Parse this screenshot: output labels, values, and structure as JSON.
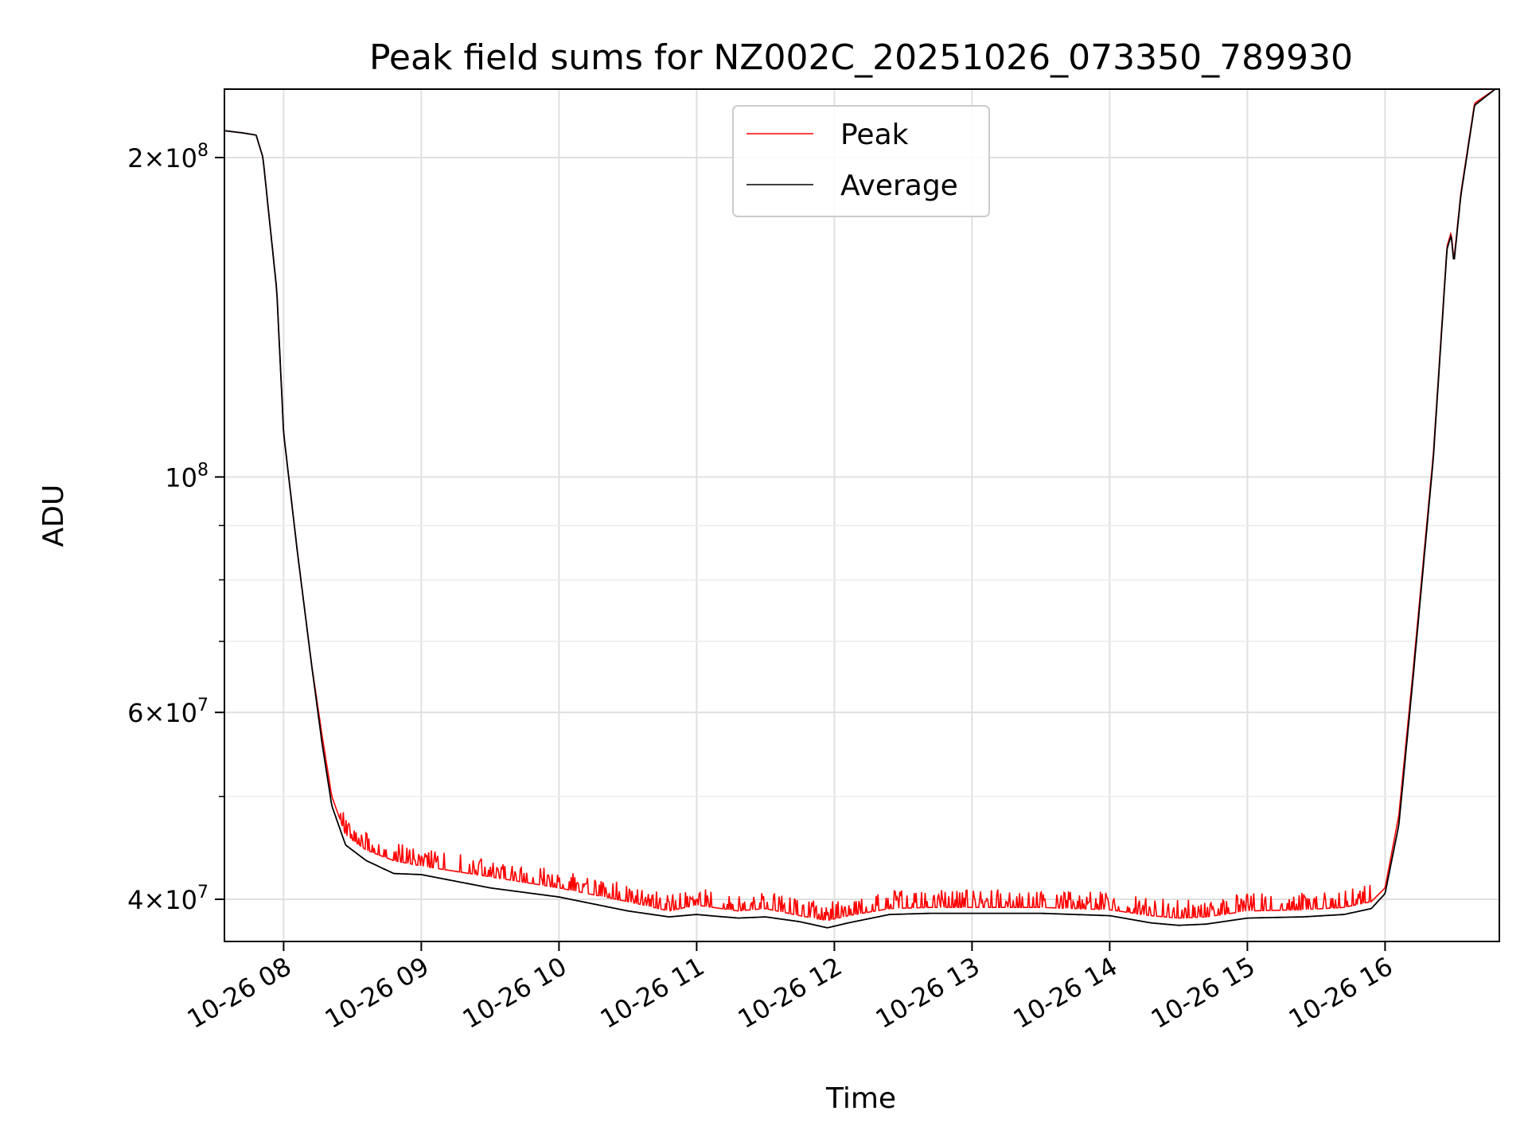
{
  "chart_data": {
    "type": "line",
    "title": "Peak field sums for NZ002C_20251026_073350_789930",
    "xlabel": "Time",
    "ylabel": "ADU",
    "yscale": "log",
    "xlim_hours": [
      7.57,
      16.83
    ],
    "ylim": [
      36500000,
      232000000
    ],
    "grid": true,
    "legend_position": "upper center",
    "x_ticks": [
      {
        "hour": 8,
        "label": "10-26 08"
      },
      {
        "hour": 9,
        "label": "10-26 09"
      },
      {
        "hour": 10,
        "label": "10-26 10"
      },
      {
        "hour": 11,
        "label": "10-26 11"
      },
      {
        "hour": 12,
        "label": "10-26 12"
      },
      {
        "hour": 13,
        "label": "10-26 13"
      },
      {
        "hour": 14,
        "label": "10-26 14"
      },
      {
        "hour": 15,
        "label": "10-26 15"
      },
      {
        "hour": 16,
        "label": "10-26 16"
      }
    ],
    "y_major_ticks": [
      {
        "value": 40000000,
        "mant": "4",
        "exp": "7"
      },
      {
        "value": 60000000,
        "mant": "6",
        "exp": "7"
      },
      {
        "value": 100000000,
        "mant": "",
        "exp": "8"
      },
      {
        "value": 200000000,
        "mant": "2",
        "exp": "8"
      }
    ],
    "y_minor_ticks": [
      50000000,
      70000000,
      80000000,
      90000000
    ],
    "series": [
      {
        "name": "Peak",
        "color": "#ff0000",
        "hours": [
          7.57,
          7.7,
          7.8,
          7.85,
          7.95,
          8.0,
          8.1,
          8.2,
          8.28,
          8.35,
          8.45,
          8.6,
          8.8,
          9.0,
          9.5,
          10.0,
          10.5,
          10.8,
          11.0,
          11.3,
          11.5,
          11.75,
          11.95,
          12.1,
          12.4,
          12.7,
          13.0,
          13.5,
          14.0,
          14.3,
          14.5,
          14.7,
          15.0,
          15.4,
          15.7,
          15.9,
          16.0,
          16.1,
          16.2,
          16.35,
          16.45,
          16.48,
          16.5,
          16.55,
          16.65,
          16.8
        ],
        "values": [
          212000000,
          211000000,
          210000000,
          200000000,
          150000000,
          110000000,
          85000000,
          67000000,
          57000000,
          50000000,
          46000000,
          44500000,
          43500000,
          43000000,
          42000000,
          41000000,
          39800000,
          39000000,
          39500000,
          39000000,
          39200000,
          38600000,
          38200000,
          38600000,
          39200000,
          39300000,
          39300000,
          39300000,
          39100000,
          38600000,
          38400000,
          38500000,
          39000000,
          39100000,
          39300000,
          39800000,
          41000000,
          48000000,
          65000000,
          105000000,
          165000000,
          170000000,
          160000000,
          185000000,
          225000000,
          232000000
        ]
      },
      {
        "name": "Average",
        "color": "#000000",
        "hours": [
          7.57,
          7.7,
          7.8,
          7.85,
          7.95,
          8.0,
          8.1,
          8.2,
          8.28,
          8.35,
          8.45,
          8.6,
          8.8,
          9.0,
          9.5,
          10.0,
          10.5,
          10.8,
          11.0,
          11.3,
          11.5,
          11.75,
          11.95,
          12.1,
          12.4,
          12.7,
          13.0,
          13.5,
          14.0,
          14.3,
          14.5,
          14.7,
          15.0,
          15.4,
          15.7,
          15.9,
          16.0,
          16.1,
          16.2,
          16.35,
          16.45,
          16.48,
          16.5,
          16.55,
          16.65,
          16.8
        ],
        "values": [
          212000000,
          211000000,
          210000000,
          200000000,
          150000000,
          110000000,
          85000000,
          67000000,
          56000000,
          49000000,
          45000000,
          43500000,
          42300000,
          42200000,
          41000000,
          40200000,
          39000000,
          38500000,
          38700000,
          38400000,
          38500000,
          38100000,
          37600000,
          38000000,
          38700000,
          38800000,
          38800000,
          38800000,
          38600000,
          38000000,
          37800000,
          37900000,
          38400000,
          38500000,
          38700000,
          39200000,
          40500000,
          47000000,
          64000000,
          104000000,
          164000000,
          169000000,
          159000000,
          184000000,
          224000000,
          232000000
        ]
      }
    ]
  }
}
